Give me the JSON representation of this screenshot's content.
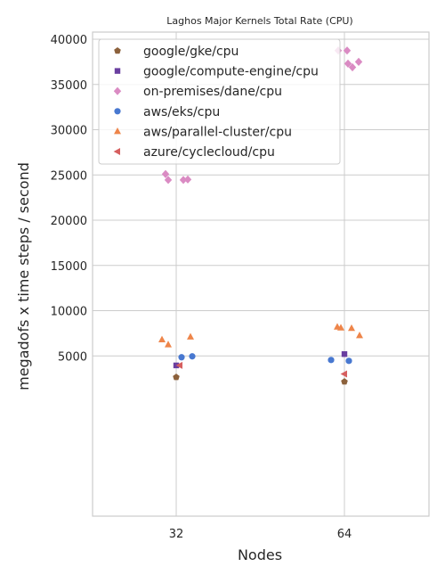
{
  "chart_data": {
    "type": "scatter",
    "title": "Laghos Major Kernels Total Rate (CPU)",
    "xlabel": "Nodes",
    "ylabel": "megadofs x time steps / second",
    "categories": [
      "32",
      "64"
    ],
    "ylim": [
      0,
      40000
    ],
    "yticks": [
      5000,
      10000,
      15000,
      20000,
      25000,
      30000,
      35000,
      40000
    ],
    "grid": true,
    "legend_position": "top-left",
    "series": [
      {
        "name": "google/gke/cpu",
        "color": "#8c613c",
        "marker": "pentagon",
        "points": [
          {
            "category": "32",
            "y": 2650
          },
          {
            "category": "64",
            "y": 2150
          }
        ]
      },
      {
        "name": "google/compute-engine/cpu",
        "color": "#6a3fa0",
        "marker": "square",
        "points": [
          {
            "category": "32",
            "y": 3950
          },
          {
            "category": "64",
            "y": 5200
          }
        ]
      },
      {
        "name": "on-premises/dane/cpu",
        "color": "#da8bc3",
        "marker": "diamond",
        "points": [
          {
            "category": "32",
            "y": 25100
          },
          {
            "category": "32",
            "y": 24450
          },
          {
            "category": "32",
            "y": 24450
          },
          {
            "category": "32",
            "y": 24500
          },
          {
            "category": "64",
            "y": 38750
          },
          {
            "category": "64",
            "y": 38750
          },
          {
            "category": "64",
            "y": 37300
          },
          {
            "category": "64",
            "y": 36900
          },
          {
            "category": "64",
            "y": 37500
          }
        ]
      },
      {
        "name": "aws/eks/cpu",
        "color": "#4878d0",
        "marker": "circle",
        "points": [
          {
            "category": "32",
            "y": 4850
          },
          {
            "category": "32",
            "y": 4950
          },
          {
            "category": "64",
            "y": 4550
          },
          {
            "category": "64",
            "y": 4450
          }
        ]
      },
      {
        "name": "aws/parallel-cluster/cpu",
        "color": "#ee854a",
        "marker": "triangle-up",
        "points": [
          {
            "category": "32",
            "y": 6800
          },
          {
            "category": "32",
            "y": 6250
          },
          {
            "category": "32",
            "y": 7100
          },
          {
            "category": "64",
            "y": 8200
          },
          {
            "category": "64",
            "y": 8100
          },
          {
            "category": "64",
            "y": 8050
          },
          {
            "category": "64",
            "y": 7250
          }
        ]
      },
      {
        "name": "azure/cyclecloud/cpu",
        "color": "#d65f5f",
        "marker": "triangle-left",
        "points": [
          {
            "category": "32",
            "y": 3950
          },
          {
            "category": "64",
            "y": 3000
          }
        ]
      }
    ]
  }
}
